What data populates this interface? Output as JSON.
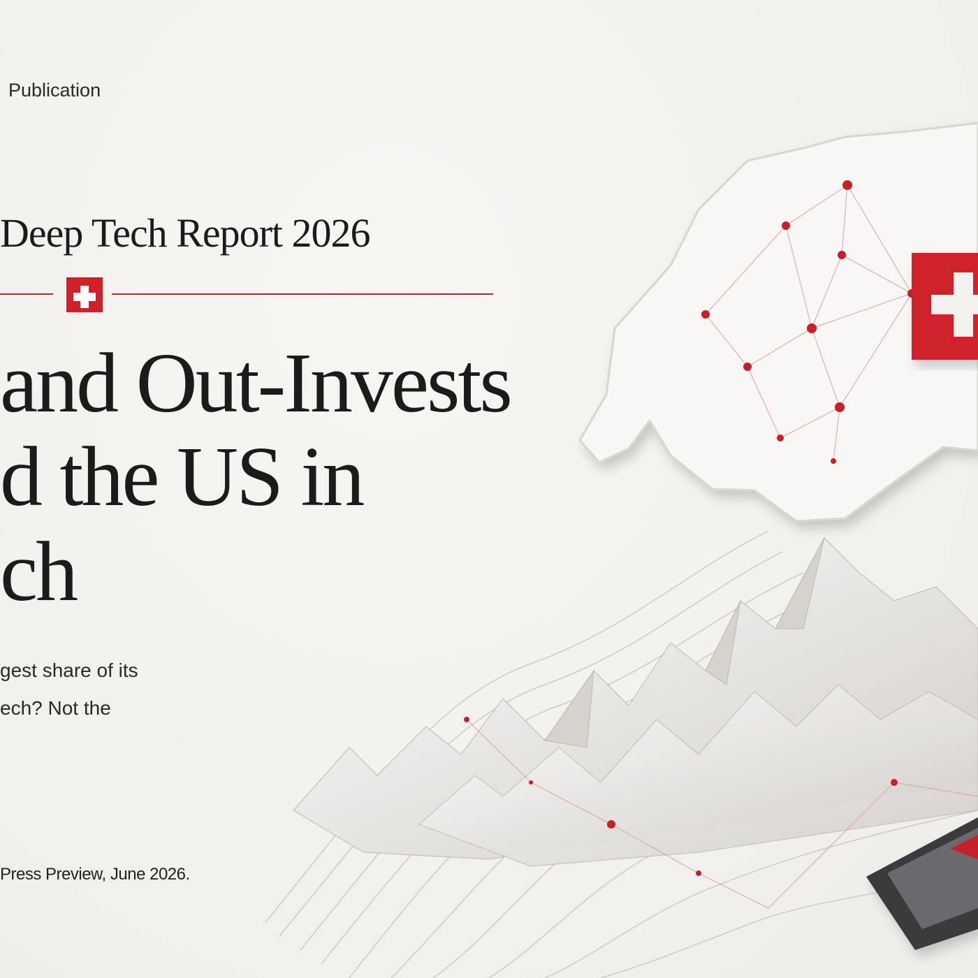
{
  "header": {
    "eyebrow": "Publication",
    "report": "Deep Tech Report 2026"
  },
  "headline": {
    "lines": [
      "and Out-Invests",
      "d the US in",
      "ch"
    ]
  },
  "body": {
    "lines": [
      "gest share of its",
      "ech? Not the"
    ]
  },
  "footer": {
    "note": "Press Preview, June 2026."
  }
}
